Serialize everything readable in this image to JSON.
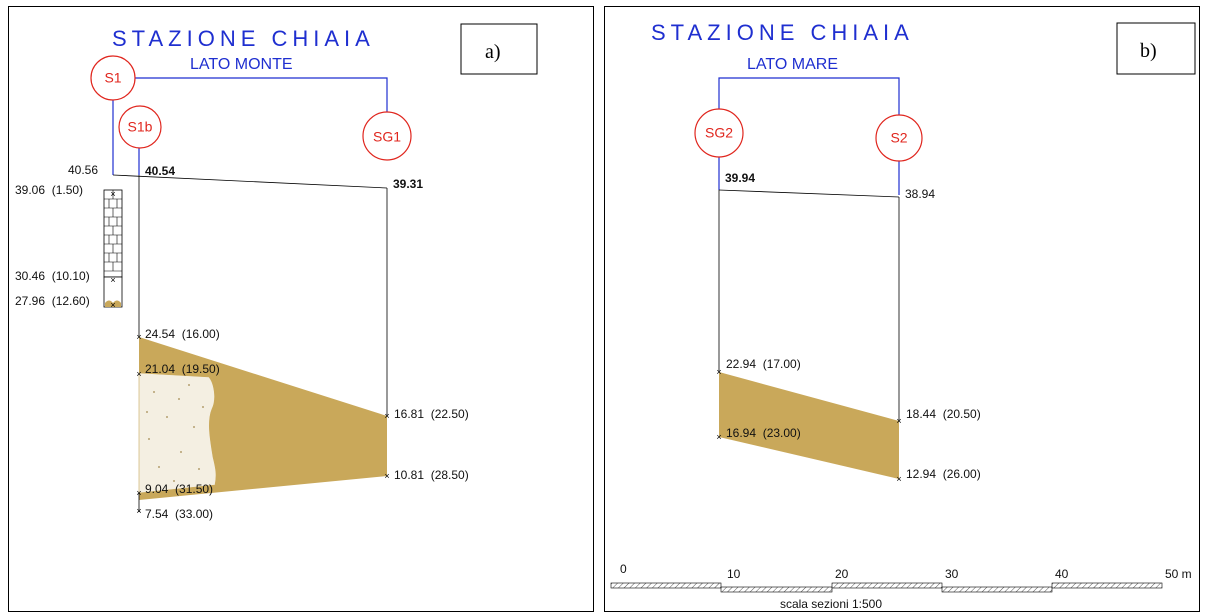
{
  "panel_a": {
    "tag": "a)",
    "title": "STAZIONE CHIAIA",
    "subtitle": "LATO MONTE",
    "boreholes": [
      "S1",
      "S1b",
      "SG1"
    ],
    "elev_s1_top": "40.56",
    "elev_s1b_top": "40.54",
    "elev_sg1_top": "39.31",
    "s1_labels": [
      "39.06  (1.50)",
      "30.46  (10.10)",
      "27.96  (12.60)"
    ],
    "s1b_labels": [
      "24.54  (16.00)",
      "21.04  (19.50)",
      "9.04  (31.50)",
      "7.54  (33.00)"
    ],
    "sg1_labels": [
      "16.81  (22.50)",
      "10.81  (28.50)"
    ]
  },
  "panel_b": {
    "tag": "b)",
    "title": "STAZIONE CHIAIA",
    "subtitle": "LATO MARE",
    "boreholes": [
      "SG2",
      "S2"
    ],
    "elev_sg2_top": "39.94",
    "elev_s2_top": "38.94",
    "sg2_labels": [
      "22.94  (17.00)",
      "16.94  (23.00)"
    ],
    "s2_labels": [
      "18.44  (20.50)",
      "12.94  (26.00)"
    ]
  },
  "scale_bar": {
    "ticks": [
      "0",
      "10",
      "20",
      "30",
      "40",
      "50 m"
    ],
    "caption": "scala sezioni 1:500"
  },
  "colors": {
    "title_blue": "#1f2fd0",
    "circle_red": "#e0261e",
    "tuff_fill": "#c9a85a",
    "loose_fill": "#f4efe2"
  }
}
